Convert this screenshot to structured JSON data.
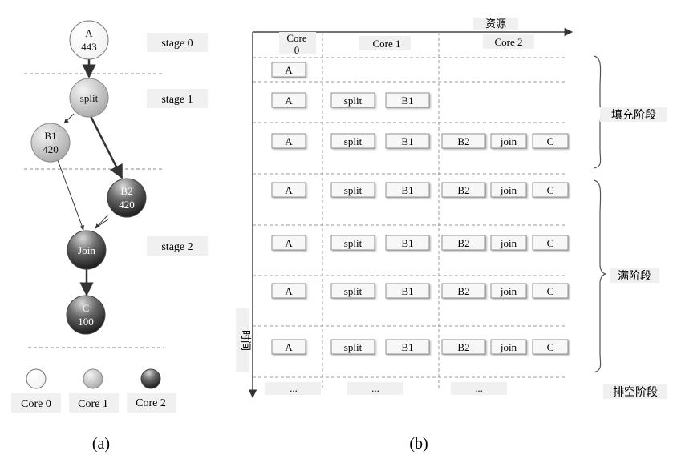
{
  "panel_a": {
    "caption": "(a)",
    "nodes": [
      {
        "id": "A",
        "name": "A",
        "value": "443",
        "core": 0
      },
      {
        "id": "split",
        "name": "split",
        "value": "",
        "core": 1
      },
      {
        "id": "B1",
        "name": "B1",
        "value": "420",
        "core": 1
      },
      {
        "id": "B2",
        "name": "B2",
        "value": "420",
        "core": 2
      },
      {
        "id": "Join",
        "name": "Join",
        "value": "",
        "core": 2
      },
      {
        "id": "C",
        "name": "C",
        "value": "100",
        "core": 2
      }
    ],
    "edges": [
      {
        "from": "A",
        "to": "split",
        "weight": "heavy"
      },
      {
        "from": "split",
        "to": "B1",
        "weight": "thin"
      },
      {
        "from": "split",
        "to": "B2",
        "weight": "heavy"
      },
      {
        "from": "B1",
        "to": "Join",
        "weight": "thin"
      },
      {
        "from": "B2",
        "to": "Join",
        "weight": "thin"
      },
      {
        "from": "Join",
        "to": "C",
        "weight": "heavy"
      }
    ],
    "stages": [
      "stage 0",
      "stage 1",
      "stage 2"
    ],
    "legend": [
      {
        "label": "Core 0",
        "shade": "white"
      },
      {
        "label": "Core 1",
        "shade": "light-gray"
      },
      {
        "label": "Core 2",
        "shade": "dark-gray"
      }
    ],
    "colors": {
      "core0": "#ffffff",
      "core1": "#c8c8c8",
      "core2": "#3c3c3c"
    }
  },
  "panel_b": {
    "caption": "(b)",
    "resource_axis_label": "资源",
    "time_axis_label": "时间",
    "columns": [
      "Core 0",
      "Core 1",
      "Core 2"
    ],
    "rows": [
      {
        "core0": [
          "A"
        ],
        "core1": [],
        "core2": []
      },
      {
        "core0": [
          "A"
        ],
        "core1": [
          "split",
          "B1"
        ],
        "core2": []
      },
      {
        "core0": [
          "A"
        ],
        "core1": [
          "split",
          "B1"
        ],
        "core2": [
          "B2",
          "join",
          "C"
        ]
      },
      {
        "core0": [
          "A"
        ],
        "core1": [
          "split",
          "B1"
        ],
        "core2": [
          "B2",
          "join",
          "C"
        ]
      },
      {
        "core0": [
          "A"
        ],
        "core1": [
          "split",
          "B1"
        ],
        "core2": [
          "B2",
          "join",
          "C"
        ]
      },
      {
        "core0": [
          "A"
        ],
        "core1": [
          "split",
          "B1"
        ],
        "core2": [
          "B2",
          "join",
          "C"
        ]
      },
      {
        "core0": [
          "A"
        ],
        "core1": [
          "split",
          "B1"
        ],
        "core2": [
          "B2",
          "join",
          "C"
        ]
      }
    ],
    "ellipsis": "...",
    "phases": [
      "填充阶段",
      "满阶段",
      "排空阶段"
    ]
  }
}
